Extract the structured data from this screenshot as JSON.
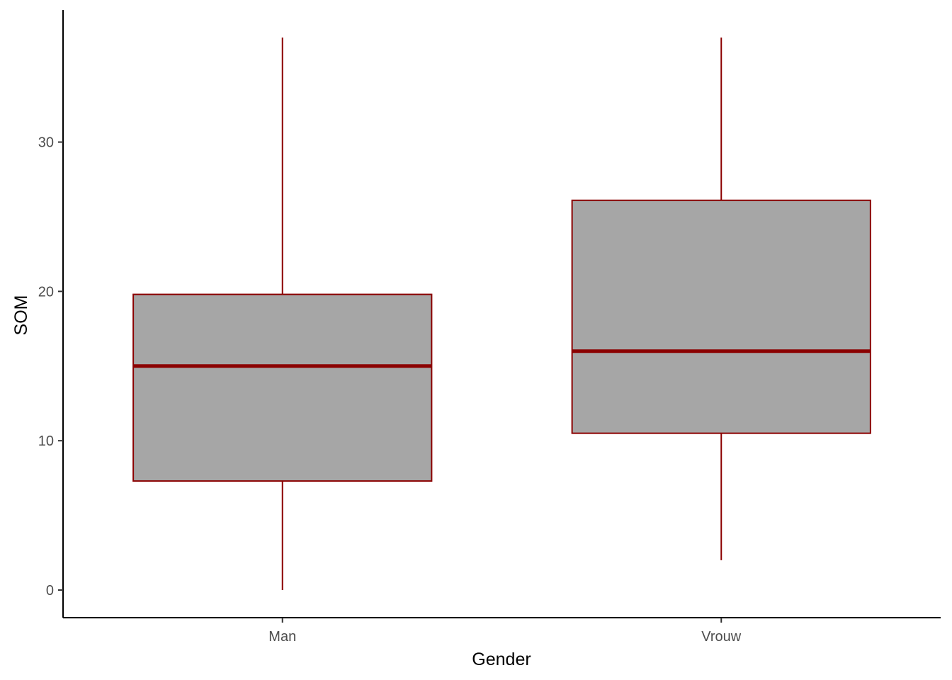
{
  "chart_data": {
    "type": "boxplot",
    "title": "",
    "xlabel": "Gender",
    "ylabel": "SOM",
    "categories": [
      "Man",
      "Vrouw"
    ],
    "boxes": [
      {
        "category": "Man",
        "min": 0,
        "q1": 7.3,
        "median": 15,
        "q3": 19.8,
        "max": 37
      },
      {
        "category": "Vrouw",
        "min": 2,
        "q1": 10.5,
        "median": 16,
        "q3": 26.1,
        "max": 37
      }
    ],
    "yticks": [
      0,
      10,
      20,
      30
    ],
    "ylim": [
      -1.85,
      38.85
    ],
    "grid": false,
    "legend": "none",
    "colors": {
      "box_fill": "#a6a6a6",
      "box_stroke": "#8b0000",
      "axis": "#000000",
      "tick_text": "#4d4d4d"
    }
  }
}
